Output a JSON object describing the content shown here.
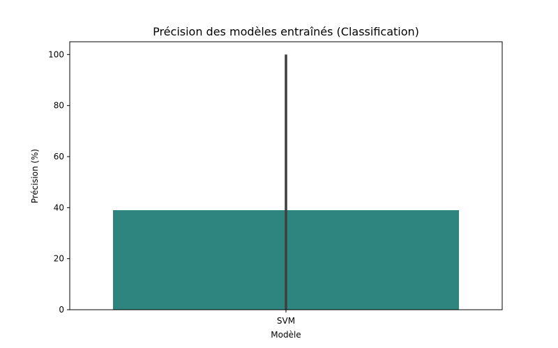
{
  "chart_data": {
    "type": "bar",
    "title": "Précision des modèles entraînés (Classification)",
    "xlabel": "Modèle",
    "ylabel": "Précision (%)",
    "categories": [
      "SVM"
    ],
    "values": [
      39
    ],
    "error_bars": [
      {
        "low": 0,
        "high": 100
      }
    ],
    "ylim": [
      0,
      105
    ],
    "yticks": [
      0,
      20,
      40,
      60,
      80,
      100
    ],
    "grid": false,
    "legend": "none",
    "colors": {
      "bar": "#2e8580",
      "error_bar": "#3f3f3f",
      "axis": "#000000"
    }
  }
}
